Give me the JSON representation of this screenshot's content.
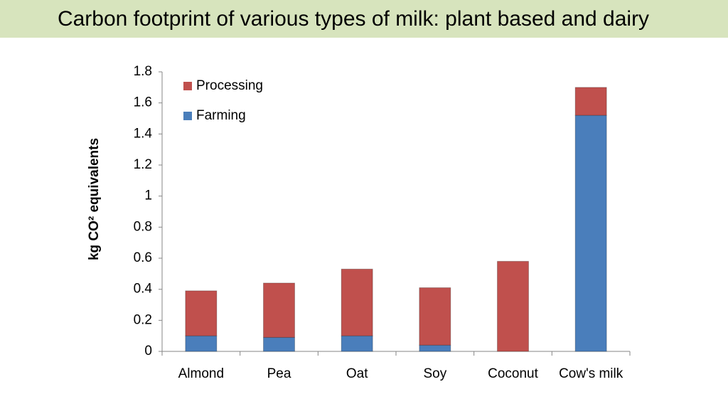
{
  "chart_data": {
    "type": "stacked-bar",
    "title": "Carbon footprint of various types of milk: plant based and dairy",
    "y_label": "kg CO² equivalents",
    "categories": [
      "Almond",
      "Pea",
      "Oat",
      "Soy",
      "Coconut",
      "Cow's milk"
    ],
    "series": [
      {
        "name": "Farming",
        "color": "#4a7ebb",
        "values": [
          0.1,
          0.09,
          0.1,
          0.04,
          0,
          1.52
        ]
      },
      {
        "name": "Processing",
        "color": "#c0504d",
        "values": [
          0.29,
          0.35,
          0.43,
          0.37,
          0.58,
          0.18
        ]
      }
    ],
    "ylim": [
      0,
      1.8
    ],
    "yticks": [
      0,
      0.2,
      0.4,
      0.6,
      0.8,
      1,
      1.2,
      1.4,
      1.6,
      1.8
    ],
    "legend": "top-left"
  }
}
